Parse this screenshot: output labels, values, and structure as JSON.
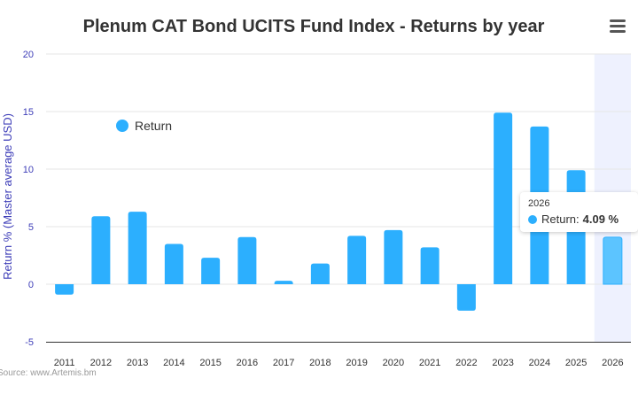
{
  "colors": {
    "series": "#2caffe",
    "highlight_bar": "#5cc4ff",
    "highlight_band": "#eef1fe",
    "axis_label": "#3d3db8",
    "grid": "#e6e6e6"
  },
  "menu": {
    "icon": "hamburger-menu-icon"
  },
  "legend": {
    "label": "Return"
  },
  "tooltip": {
    "year": "2026",
    "label": "Return:",
    "value": "4.09 %"
  },
  "source": "Source: www.Artemis.bm",
  "chart_data": {
    "type": "bar",
    "title": "Plenum CAT Bond UCITS Fund Index - Returns by year",
    "xlabel": "",
    "ylabel": "Return % (Master average USD)",
    "categories": [
      "2011",
      "2012",
      "2013",
      "2014",
      "2015",
      "2016",
      "2017",
      "2018",
      "2019",
      "2020",
      "2021",
      "2022",
      "2023",
      "2024",
      "2025",
      "2026"
    ],
    "series": [
      {
        "name": "Return",
        "values": [
          -0.9,
          5.9,
          6.3,
          3.5,
          2.3,
          4.1,
          0.3,
          1.8,
          4.2,
          4.7,
          3.2,
          -2.3,
          14.9,
          13.7,
          9.9,
          4.09
        ]
      }
    ],
    "ylim": [
      -5,
      20
    ],
    "yticks": [
      -5,
      0,
      5,
      10,
      15,
      20
    ],
    "highlighted_category": "2026",
    "grid": true,
    "legend_position": "left-top"
  }
}
